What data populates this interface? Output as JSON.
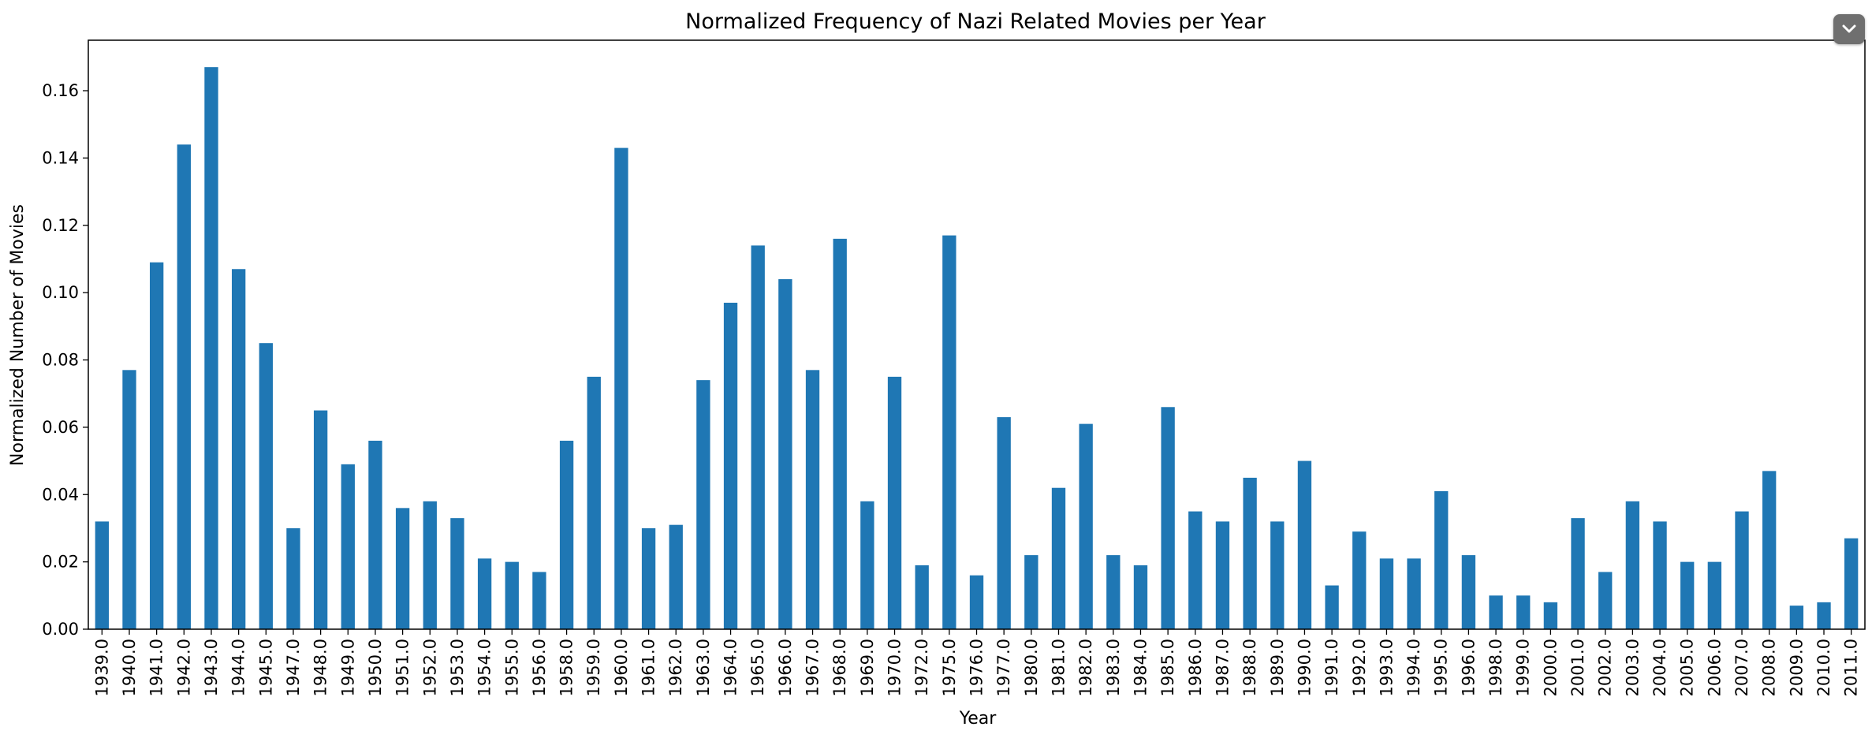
{
  "chart_data": {
    "type": "bar",
    "title": "Normalized Frequency of Nazi Related Movies per Year",
    "xlabel": "Year",
    "ylabel": "Normalized Number of Movies",
    "ylim": [
      0,
      0.175
    ],
    "yticks": [
      "0.00",
      "0.02",
      "0.04",
      "0.06",
      "0.08",
      "0.10",
      "0.12",
      "0.14",
      "0.16"
    ],
    "grid": false,
    "bar_color": "#1f77b4",
    "categories": [
      "1939.0",
      "1940.0",
      "1941.0",
      "1942.0",
      "1943.0",
      "1944.0",
      "1945.0",
      "1947.0",
      "1948.0",
      "1949.0",
      "1950.0",
      "1951.0",
      "1952.0",
      "1953.0",
      "1954.0",
      "1955.0",
      "1956.0",
      "1958.0",
      "1959.0",
      "1960.0",
      "1961.0",
      "1962.0",
      "1963.0",
      "1964.0",
      "1965.0",
      "1966.0",
      "1967.0",
      "1968.0",
      "1969.0",
      "1970.0",
      "1972.0",
      "1975.0",
      "1976.0",
      "1977.0",
      "1980.0",
      "1981.0",
      "1982.0",
      "1983.0",
      "1984.0",
      "1985.0",
      "1986.0",
      "1987.0",
      "1988.0",
      "1989.0",
      "1990.0",
      "1991.0",
      "1992.0",
      "1993.0",
      "1994.0",
      "1995.0",
      "1996.0",
      "1998.0",
      "1999.0",
      "2000.0",
      "2001.0",
      "2002.0",
      "2003.0",
      "2004.0",
      "2005.0",
      "2006.0",
      "2007.0",
      "2008.0",
      "2009.0",
      "2010.0",
      "2011.0"
    ],
    "values": [
      0.032,
      0.077,
      0.109,
      0.144,
      0.167,
      0.107,
      0.085,
      0.03,
      0.065,
      0.049,
      0.056,
      0.036,
      0.038,
      0.033,
      0.021,
      0.02,
      0.017,
      0.056,
      0.075,
      0.143,
      0.03,
      0.031,
      0.074,
      0.097,
      0.114,
      0.104,
      0.077,
      0.116,
      0.038,
      0.075,
      0.019,
      0.117,
      0.016,
      0.063,
      0.022,
      0.042,
      0.061,
      0.022,
      0.019,
      0.066,
      0.035,
      0.032,
      0.045,
      0.032,
      0.05,
      0.013,
      0.029,
      0.021,
      0.021,
      0.041,
      0.022,
      0.01,
      0.01,
      0.008,
      0.033,
      0.017,
      0.038,
      0.032,
      0.02,
      0.02,
      0.035,
      0.047,
      0.007,
      0.008,
      0.027
    ]
  },
  "ui": {
    "collapse_icon": "chevron-down-icon",
    "collapse_button_color": "#6f6f6f"
  }
}
